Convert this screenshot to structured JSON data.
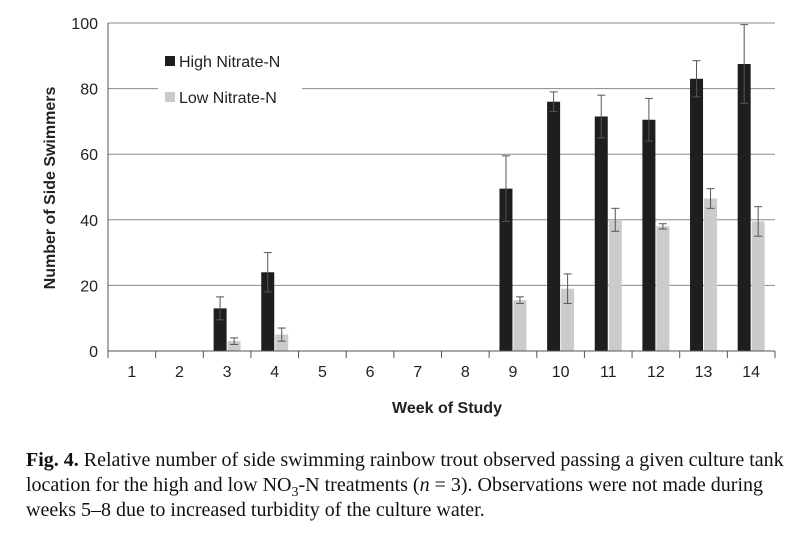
{
  "chart_data": {
    "type": "bar",
    "xlabel": "Week of Study",
    "ylabel": "Number of Side Swimmers",
    "ylim": [
      0,
      100
    ],
    "yticks": [
      0,
      20,
      40,
      60,
      80,
      100
    ],
    "categories": [
      "1",
      "2",
      "3",
      "4",
      "5",
      "6",
      "7",
      "8",
      "9",
      "10",
      "11",
      "12",
      "13",
      "14"
    ],
    "legend_position": "top-left",
    "grid": true,
    "series": [
      {
        "name": "High Nitrate-N",
        "color": "#1e1e1e",
        "values": [
          0,
          0,
          13,
          24,
          null,
          null,
          null,
          null,
          49.5,
          76,
          71.5,
          70.5,
          83,
          87.5
        ],
        "errors": [
          0,
          0,
          3.5,
          6,
          null,
          null,
          null,
          null,
          10,
          3,
          6.5,
          6.5,
          5.5,
          12
        ]
      },
      {
        "name": "Low Nitrate-N",
        "color": "#cbcbcb",
        "values": [
          0,
          0,
          3,
          5,
          null,
          null,
          null,
          null,
          15.5,
          19,
          40,
          38,
          46.5,
          39.5
        ],
        "errors": [
          0,
          0,
          1,
          2,
          null,
          null,
          null,
          null,
          1,
          4.5,
          3.5,
          0.8,
          3,
          4.5
        ]
      }
    ]
  },
  "caption": {
    "label": "Fig. 4.",
    "text_before_sub": "Relative number of side swimming rainbow trout observed passing a given culture tank location for the high and low NO",
    "sub": "3",
    "text_after_sub": "-N treatments (",
    "n_var": "n",
    "text_after_n": " = 3). Observations were not made during weeks 5–8 due to increased turbidity of the culture water."
  }
}
